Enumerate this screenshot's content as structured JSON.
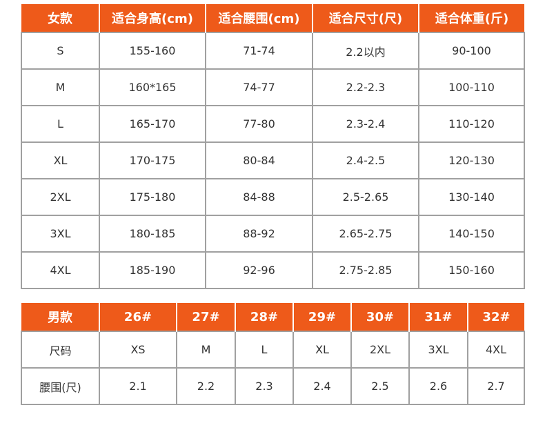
{
  "women": {
    "headers": [
      "女款",
      "适合身高(cm)",
      "适合腰围(cm)",
      "适合尺寸(尺)",
      "适合体重(斤)"
    ],
    "rows": [
      [
        "S",
        "155-160",
        "71-74",
        "2.2以内",
        "90-100"
      ],
      [
        "M",
        "160*165",
        "74-77",
        "2.2-2.3",
        "100-110"
      ],
      [
        "L",
        "165-170",
        "77-80",
        "2.3-2.4",
        "110-120"
      ],
      [
        "XL",
        "170-175",
        "80-84",
        "2.4-2.5",
        "120-130"
      ],
      [
        "2XL",
        "175-180",
        "84-88",
        "2.5-2.65",
        "130-140"
      ],
      [
        "3XL",
        "180-185",
        "88-92",
        "2.65-2.75",
        "140-150"
      ],
      [
        "4XL",
        "185-190",
        "92-96",
        "2.75-2.85",
        "150-160"
      ]
    ]
  },
  "men": {
    "headers": [
      "男款",
      "26#",
      "27#",
      "28#",
      "29#",
      "30#",
      "31#",
      "32#"
    ],
    "rows": [
      [
        "尺码",
        "XS",
        "M",
        "L",
        "XL",
        "2XL",
        "3XL",
        "4XL"
      ],
      [
        "腰围(尺)",
        "2.1",
        "2.2",
        "2.3",
        "2.4",
        "2.5",
        "2.6",
        "2.7"
      ]
    ]
  },
  "colors": {
    "header_bg": "#ee5a1a",
    "header_text": "#ffffff",
    "border": "#a0a0a0",
    "cell_text": "#333333"
  }
}
